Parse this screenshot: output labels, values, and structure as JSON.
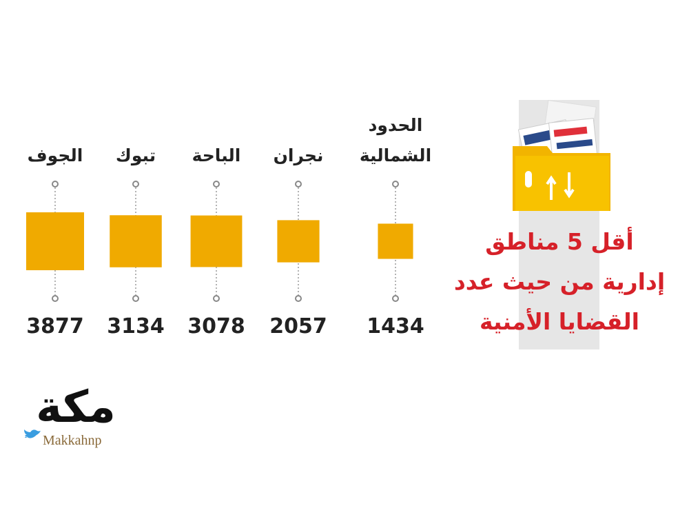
{
  "chart_data": {
    "type": "square",
    "title": [
      "أقل 5 مناطق",
      "إدارية من حيث عدد",
      "القضايا الأمنية"
    ],
    "categories": [
      "الحدود الشمالية",
      "نجران",
      "الباحة",
      "تبوك",
      "الجوف"
    ],
    "values": [
      1434,
      2057,
      3078,
      3134,
      3877
    ],
    "color": "#f0aa00",
    "title_color": "#d62129"
  },
  "logo": {
    "name": "مكة",
    "handle": "Makkahnp"
  }
}
